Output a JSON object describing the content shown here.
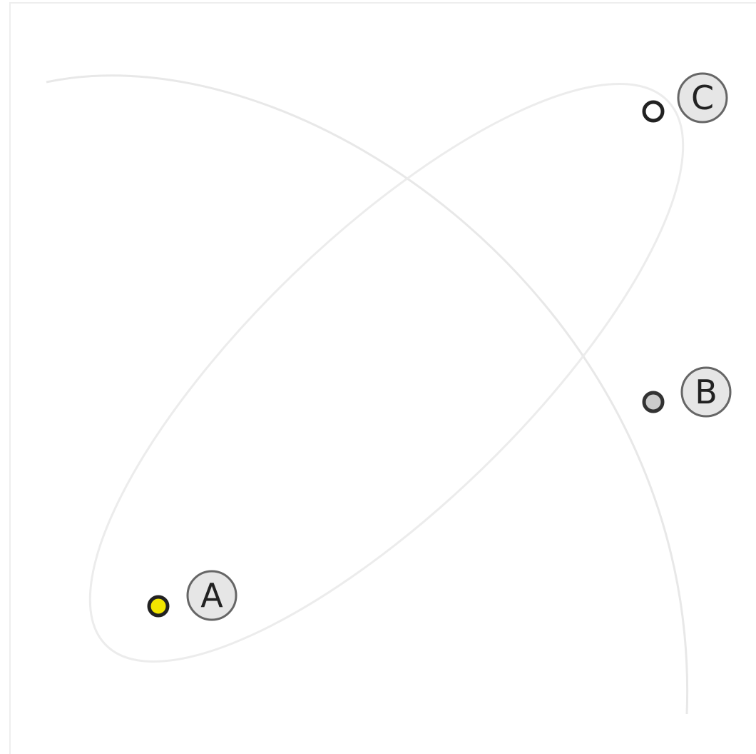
{
  "nodes": [
    {
      "label": "A"
    },
    {
      "label": "B"
    },
    {
      "label": "C"
    }
  ]
}
